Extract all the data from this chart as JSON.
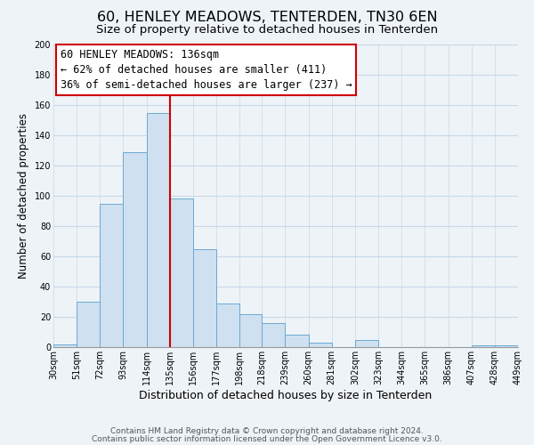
{
  "title": "60, HENLEY MEADOWS, TENTERDEN, TN30 6EN",
  "subtitle": "Size of property relative to detached houses in Tenterden",
  "xlabel": "Distribution of detached houses by size in Tenterden",
  "ylabel": "Number of detached properties",
  "bar_color": "#cfe0f0",
  "bar_edge_color": "#6aaad4",
  "grid_color": "#c8d8e8",
  "vline_color": "#cc0000",
  "vline_x": 135,
  "bin_edges": [
    30,
    51,
    72,
    93,
    114,
    135,
    156,
    177,
    198,
    218,
    239,
    260,
    281,
    302,
    323,
    344,
    365,
    386,
    407,
    428,
    449
  ],
  "bar_heights": [
    2,
    30,
    95,
    129,
    155,
    98,
    65,
    29,
    22,
    16,
    8,
    3,
    0,
    5,
    0,
    0,
    0,
    0,
    1,
    1
  ],
  "ylim": [
    0,
    200
  ],
  "yticks": [
    0,
    20,
    40,
    60,
    80,
    100,
    120,
    140,
    160,
    180,
    200
  ],
  "annotation_line1": "60 HENLEY MEADOWS: 136sqm",
  "annotation_line2": "← 62% of detached houses are smaller (411)",
  "annotation_line3": "36% of semi-detached houses are larger (237) →",
  "footer1": "Contains HM Land Registry data © Crown copyright and database right 2024.",
  "footer2": "Contains public sector information licensed under the Open Government Licence v3.0.",
  "background_color": "#eef3f8",
  "plot_bg_color": "#eef3f8",
  "title_fontsize": 11.5,
  "subtitle_fontsize": 9.5,
  "xlabel_fontsize": 9,
  "ylabel_fontsize": 8.5,
  "tick_fontsize": 7,
  "annotation_fontsize": 8.5,
  "footer_fontsize": 6.5
}
